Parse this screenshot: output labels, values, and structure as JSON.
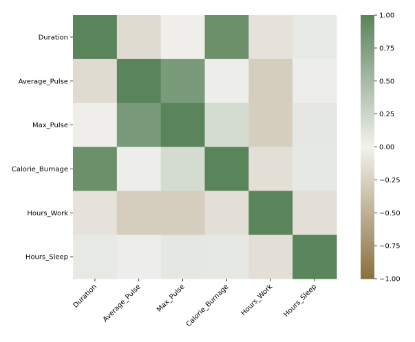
{
  "chart_data": {
    "type": "heatmap",
    "title": "",
    "xlabel": "",
    "ylabel": "",
    "x_categories": [
      "Duration",
      "Average_Pulse",
      "Max_Pulse",
      "Calorie_Burnage",
      "Hours_Work",
      "Hours_Sleep"
    ],
    "y_categories": [
      "Duration",
      "Average_Pulse",
      "Max_Pulse",
      "Calorie_Burnage",
      "Hours_Work",
      "Hours_Sleep"
    ],
    "values": [
      [
        1.0,
        -0.17,
        -0.02,
        0.89,
        -0.12,
        0.07
      ],
      [
        -0.17,
        1.0,
        0.79,
        0.03,
        -0.28,
        0.03
      ],
      [
        -0.02,
        0.79,
        1.0,
        0.2,
        -0.27,
        0.09
      ],
      [
        0.89,
        0.03,
        0.2,
        1.0,
        -0.14,
        0.08
      ],
      [
        -0.12,
        -0.28,
        -0.27,
        -0.14,
        1.0,
        -0.14
      ],
      [
        0.07,
        0.03,
        0.09,
        0.08,
        -0.14,
        1.0
      ]
    ],
    "colorbar": {
      "range": [
        -1,
        1
      ],
      "ticks": [
        "1.00",
        "0.75",
        "0.50",
        "0.25",
        "0.00",
        "−0.25",
        "−0.50",
        "−0.75",
        "−1.00"
      ],
      "tick_values": [
        1,
        0.75,
        0.5,
        0.25,
        0,
        -0.25,
        -0.5,
        -0.75,
        -1
      ]
    },
    "colors": {
      "low": "#8b6f3d",
      "mid": "#f2f1ef",
      "high": "#5a8459"
    }
  }
}
